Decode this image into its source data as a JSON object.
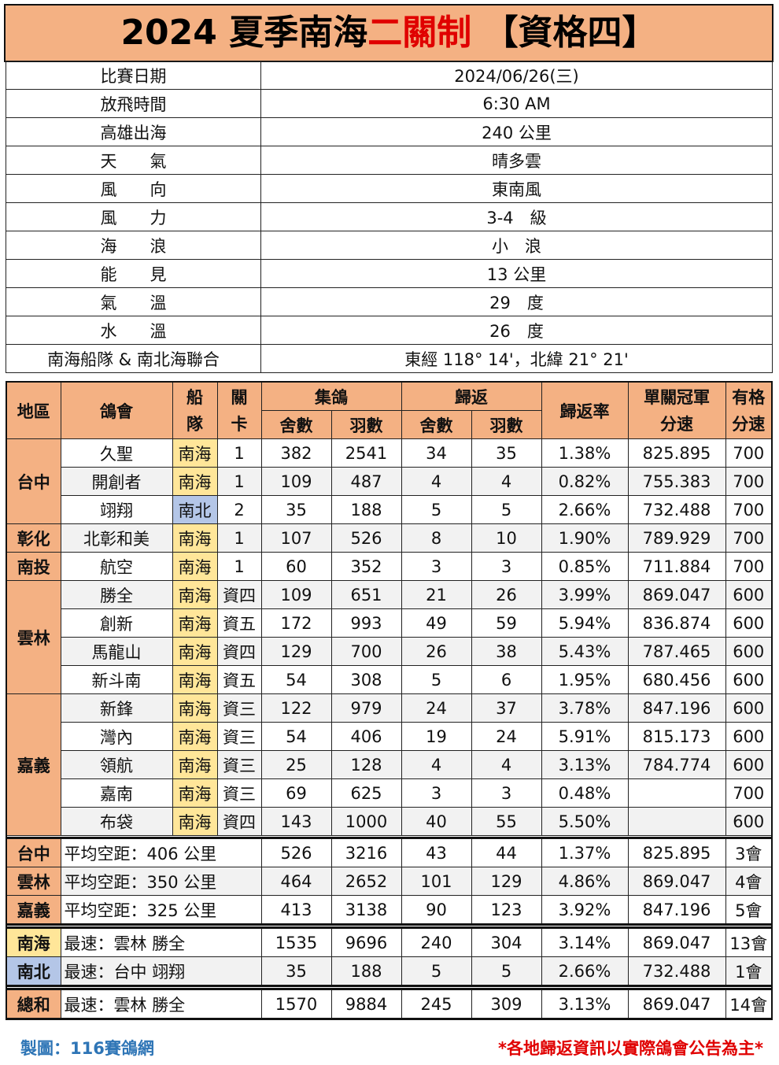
{
  "title": {
    "main": "2024 夏季南海",
    "red": "二關制",
    "tail": " 【資格四】"
  },
  "info": [
    [
      "比賽日期",
      "2024/06/26(三)"
    ],
    [
      "放飛時間",
      "6:30 AM"
    ],
    [
      "高雄出海",
      "240 公里"
    ],
    [
      "天　　氣",
      "晴多雲"
    ],
    [
      "風　　向",
      "東南風"
    ],
    [
      "風　　力",
      "3-4　級"
    ],
    [
      "海　　浪",
      "小　浪"
    ],
    [
      "能　　見",
      "13 公里"
    ],
    [
      "氣　　溫",
      "29　度"
    ],
    [
      "水　　溫",
      "26　度"
    ],
    [
      "南海船隊 & 南北海聯合",
      "東經 118°  14'，北緯 21°  21'"
    ]
  ],
  "headers": {
    "region": "地區",
    "club": "鴿會",
    "fleet": "船\n隊",
    "gate": "關\n卡",
    "collect": "集鴿",
    "return": "歸返",
    "lofts": "舍數",
    "birds": "羽數",
    "rate": "歸返率",
    "champ": "單關冠軍\n分速",
    "qual": "有格\n分速"
  },
  "colors": {
    "header": "#f4b183",
    "nanhai": "#ffe699",
    "nanbei": "#b4c6e7",
    "credit": "#2e75b6",
    "note": "#e00000"
  },
  "regions": [
    {
      "name": "台中",
      "rows": [
        [
          "久聖",
          "南海",
          "1",
          "382",
          "2541",
          "34",
          "35",
          "1.38%",
          "825.895",
          "700"
        ],
        [
          "開創者",
          "南海",
          "1",
          "109",
          "487",
          "4",
          "4",
          "0.82%",
          "755.383",
          "700"
        ],
        [
          "翊翔",
          "南北",
          "2",
          "35",
          "188",
          "5",
          "5",
          "2.66%",
          "732.488",
          "700"
        ]
      ]
    },
    {
      "name": "彰化",
      "rows": [
        [
          "北彰和美",
          "南海",
          "1",
          "107",
          "526",
          "8",
          "10",
          "1.90%",
          "789.929",
          "700"
        ]
      ]
    },
    {
      "name": "南投",
      "rows": [
        [
          "航空",
          "南海",
          "1",
          "60",
          "352",
          "3",
          "3",
          "0.85%",
          "711.884",
          "700"
        ]
      ]
    },
    {
      "name": "雲林",
      "rows": [
        [
          "勝全",
          "南海",
          "資四",
          "109",
          "651",
          "21",
          "26",
          "3.99%",
          "869.047",
          "600"
        ],
        [
          "創新",
          "南海",
          "資五",
          "172",
          "993",
          "49",
          "59",
          "5.94%",
          "836.874",
          "600"
        ],
        [
          "馬龍山",
          "南海",
          "資四",
          "129",
          "700",
          "26",
          "38",
          "5.43%",
          "787.465",
          "600"
        ],
        [
          "新斗南",
          "南海",
          "資五",
          "54",
          "308",
          "5",
          "6",
          "1.95%",
          "680.456",
          "600"
        ]
      ]
    },
    {
      "name": "嘉義",
      "rows": [
        [
          "新鋒",
          "南海",
          "資三",
          "122",
          "979",
          "24",
          "37",
          "3.78%",
          "847.196",
          "600"
        ],
        [
          "灣內",
          "南海",
          "資三",
          "54",
          "406",
          "19",
          "24",
          "5.91%",
          "815.173",
          "600"
        ],
        [
          "領航",
          "南海",
          "資三",
          "25",
          "128",
          "4",
          "4",
          "3.13%",
          "784.774",
          "600"
        ],
        [
          "嘉南",
          "南海",
          "資三",
          "69",
          "625",
          "3",
          "3",
          "0.48%",
          "",
          "700"
        ],
        [
          "布袋",
          "南海",
          "資四",
          "143",
          "1000",
          "40",
          "55",
          "5.50%",
          "",
          "600"
        ]
      ]
    }
  ],
  "summary": [
    [
      [
        "台中",
        "平均空距：406 公里",
        "526",
        "3216",
        "43",
        "44",
        "1.37%",
        "825.895",
        "3會"
      ],
      [
        "雲林",
        "平均空距：350 公里",
        "464",
        "2652",
        "101",
        "129",
        "4.86%",
        "869.047",
        "4會"
      ],
      [
        "嘉義",
        "平均空距：325 公里",
        "413",
        "3138",
        "90",
        "123",
        "3.92%",
        "847.196",
        "5會"
      ]
    ],
    [
      [
        "南海",
        "最速：雲林 勝全",
        "1535",
        "9696",
        "240",
        "304",
        "3.14%",
        "869.047",
        "13會"
      ],
      [
        "南北",
        "最速：台中 翊翔",
        "35",
        "188",
        "5",
        "5",
        "2.66%",
        "732.488",
        "1會"
      ]
    ],
    [
      [
        "總和",
        "最速：雲林 勝全",
        "1570",
        "9884",
        "245",
        "309",
        "3.13%",
        "869.047",
        "14會"
      ]
    ]
  ],
  "footer": {
    "credit": "製圖：116賽鴿網",
    "note": "*各地歸返資訊以實際鴿會公告為主*"
  }
}
